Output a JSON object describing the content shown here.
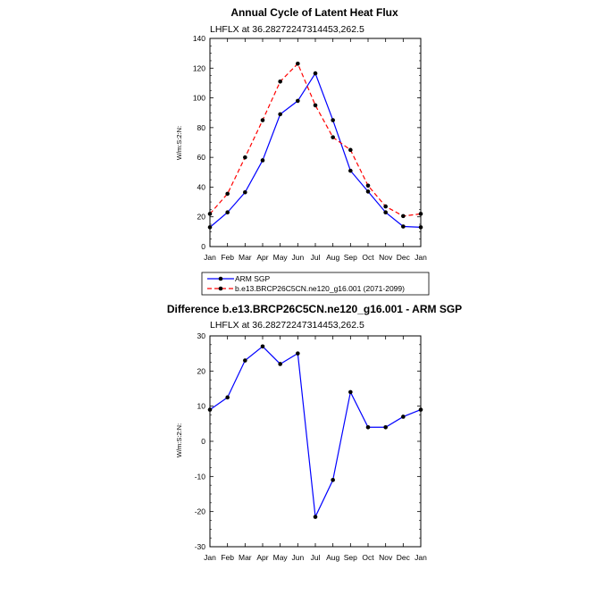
{
  "chart_data": [
    {
      "type": "line",
      "title": "Annual Cycle of Latent Heat Flux",
      "subtitle": "LHFLX at 36.28272247314453,262.5",
      "ylabel": "W/m:S:2:N:",
      "xlabel": "",
      "categories": [
        "Jan",
        "Feb",
        "Mar",
        "Apr",
        "May",
        "Jun",
        "Jul",
        "Aug",
        "Sep",
        "Oct",
        "Nov",
        "Dec",
        "Jan"
      ],
      "ylim": [
        0,
        140
      ],
      "yticks": [
        0,
        20,
        40,
        60,
        80,
        100,
        120,
        140
      ],
      "series": [
        {
          "name": "ARM SGP",
          "color": "#0000ff",
          "dash": "solid",
          "values": [
            13,
            23,
            36.5,
            58,
            89,
            98,
            116.5,
            85,
            51,
            37,
            23,
            13.5,
            13
          ]
        },
        {
          "name": "b.e13.BRCP26C5CN.ne120_g16.001 (2071-2099)",
          "color": "#ff0000",
          "dash": "dashed",
          "values": [
            22,
            35.5,
            60,
            85,
            111,
            123,
            95,
            73.5,
            65,
            41,
            27,
            20.5,
            22
          ]
        }
      ],
      "legend": "bottom"
    },
    {
      "type": "line",
      "title": "Difference b.e13.BRCP26C5CN.ne120_g16.001 - ARM SGP",
      "subtitle": "LHFLX at 36.28272247314453,262.5",
      "ylabel": "W/m:S:2:N:",
      "xlabel": "",
      "categories": [
        "Jan",
        "Feb",
        "Mar",
        "Apr",
        "May",
        "Jun",
        "Jul",
        "Aug",
        "Sep",
        "Oct",
        "Nov",
        "Dec",
        "Jan"
      ],
      "ylim": [
        -30,
        30
      ],
      "yticks": [
        -30,
        -20,
        -10,
        0,
        10,
        20,
        30
      ],
      "series": [
        {
          "name": "Difference",
          "color": "#0000ff",
          "dash": "solid",
          "values": [
            9,
            12.5,
            23,
            27,
            22,
            25,
            -21.5,
            -11,
            14,
            4,
            4,
            7,
            9
          ]
        }
      ]
    }
  ]
}
